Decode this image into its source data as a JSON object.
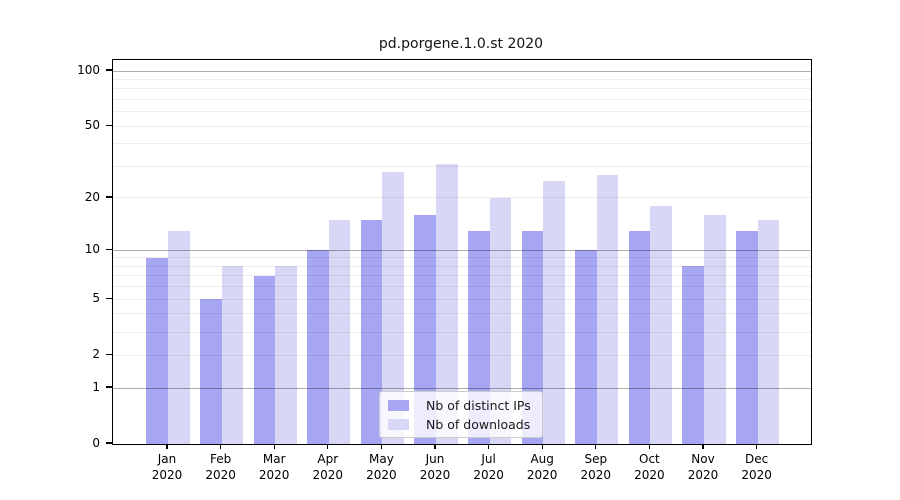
{
  "title": "pd.porgene.1.0.st 2020",
  "chart_data": {
    "type": "bar",
    "title": "pd.porgene.1.0.st 2020",
    "x_categories": [
      "Jan",
      "Feb",
      "Mar",
      "Apr",
      "May",
      "Jun",
      "Jul",
      "Aug",
      "Sep",
      "Oct",
      "Nov",
      "Dec"
    ],
    "x_sublabel": "2020",
    "series": [
      {
        "name": "Nb of distinct IPs",
        "color": "#a6a6f2",
        "values": [
          9,
          5,
          7,
          10,
          15,
          16,
          13,
          13,
          10,
          13,
          8,
          13
        ]
      },
      {
        "name": "Nb of downloads",
        "color": "#d8d8f6",
        "values": [
          13,
          8,
          8,
          15,
          28,
          31,
          20,
          25,
          27,
          18,
          16,
          15
        ]
      }
    ],
    "y_scale": "log1p",
    "ylim": [
      0,
      100
    ],
    "y_tick_labels": [
      100,
      50,
      20,
      10,
      5,
      2,
      1,
      0
    ],
    "y_major_gridlines": [
      1,
      10,
      100
    ],
    "y_minor_gridlines": [
      2,
      3,
      4,
      5,
      6,
      7,
      8,
      9,
      20,
      30,
      40,
      50,
      60,
      70,
      80,
      90
    ],
    "grid": true,
    "legend_position": "lower center"
  },
  "colors": {
    "bar_distinct_ips": "#a6a6f2",
    "bar_downloads": "#d8d8f6",
    "major_gridline": "rgba(0,0,0,0.32)",
    "minor_gridline": "rgba(0,0,0,0.07)",
    "axis": "#000000",
    "legend_border": "#cccccc"
  }
}
